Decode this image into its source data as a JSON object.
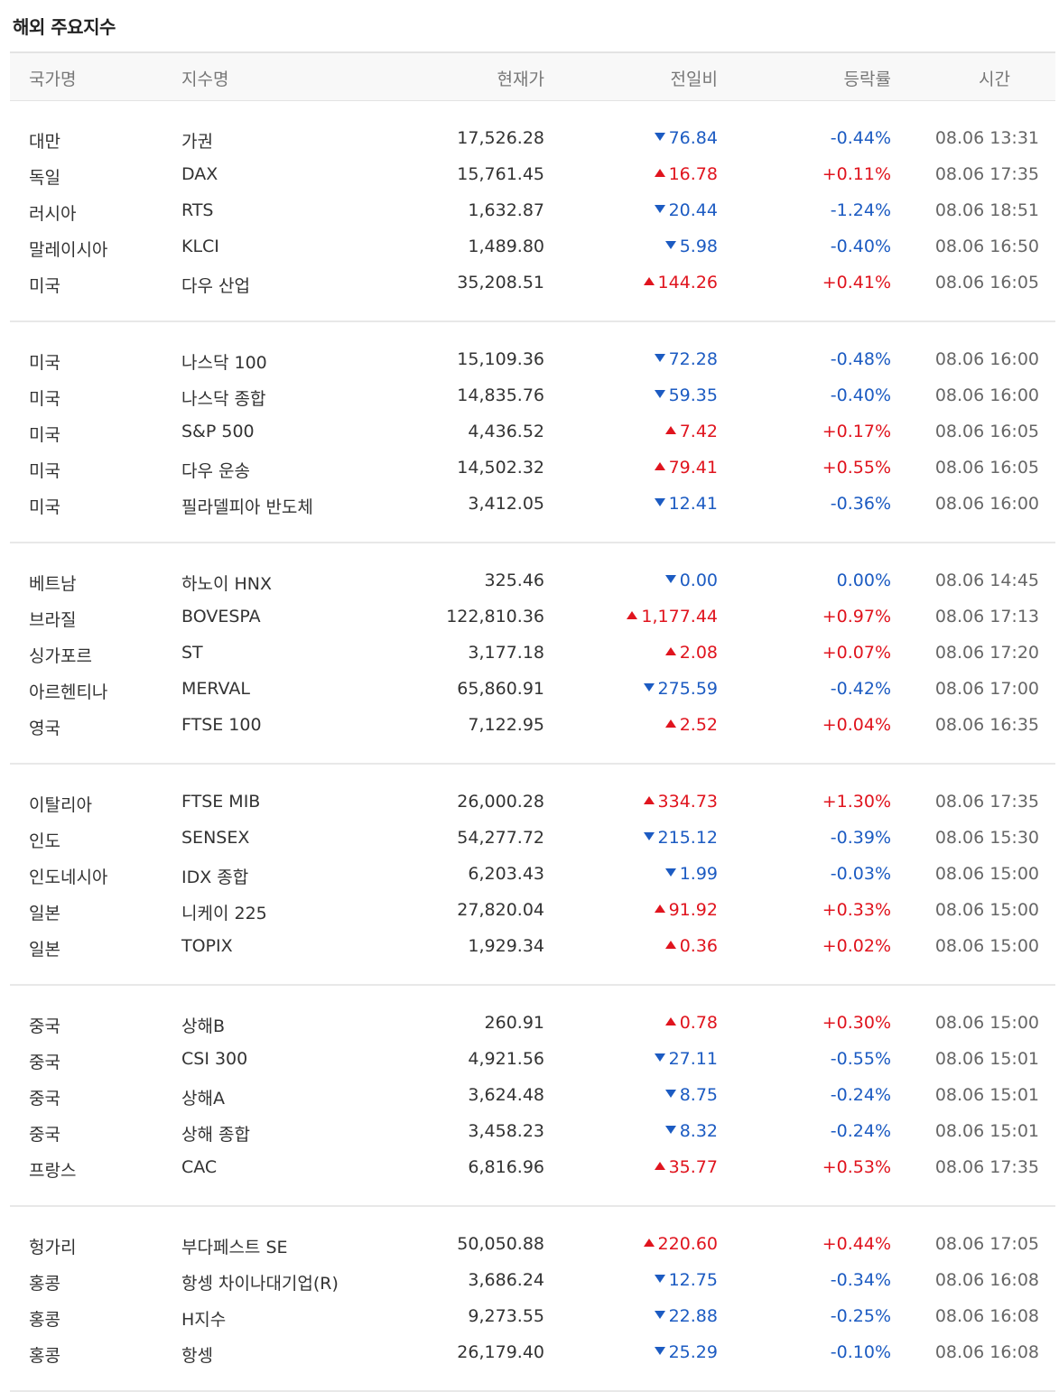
{
  "title": "해외 주요지수",
  "columns": {
    "country": "국가명",
    "name": "지수명",
    "price": "현재가",
    "change": "전일비",
    "rate": "등락률",
    "time": "시간"
  },
  "colors": {
    "up": "#e0141e",
    "down": "#1c5bc2"
  },
  "groups": [
    [
      {
        "country": "대만",
        "name": "가권",
        "price": "17,526.28",
        "direction": "down",
        "change": "76.84",
        "rate": "-0.44%",
        "time": "08.06 13:31"
      },
      {
        "country": "독일",
        "name": "DAX",
        "price": "15,761.45",
        "direction": "up",
        "change": "16.78",
        "rate": "+0.11%",
        "time": "08.06 17:35"
      },
      {
        "country": "러시아",
        "name": "RTS",
        "price": "1,632.87",
        "direction": "down",
        "change": "20.44",
        "rate": "-1.24%",
        "time": "08.06 18:51"
      },
      {
        "country": "말레이시아",
        "name": "KLCI",
        "price": "1,489.80",
        "direction": "down",
        "change": "5.98",
        "rate": "-0.40%",
        "time": "08.06 16:50"
      },
      {
        "country": "미국",
        "name": "다우 산업",
        "price": "35,208.51",
        "direction": "up",
        "change": "144.26",
        "rate": "+0.41%",
        "time": "08.06 16:05"
      }
    ],
    [
      {
        "country": "미국",
        "name": "나스닥 100",
        "price": "15,109.36",
        "direction": "down",
        "change": "72.28",
        "rate": "-0.48%",
        "time": "08.06 16:00"
      },
      {
        "country": "미국",
        "name": "나스닥 종합",
        "price": "14,835.76",
        "direction": "down",
        "change": "59.35",
        "rate": "-0.40%",
        "time": "08.06 16:00"
      },
      {
        "country": "미국",
        "name": "S&P 500",
        "price": "4,436.52",
        "direction": "up",
        "change": "7.42",
        "rate": "+0.17%",
        "time": "08.06 16:05"
      },
      {
        "country": "미국",
        "name": "다우 운송",
        "price": "14,502.32",
        "direction": "up",
        "change": "79.41",
        "rate": "+0.55%",
        "time": "08.06 16:05"
      },
      {
        "country": "미국",
        "name": "필라델피아 반도체",
        "price": "3,412.05",
        "direction": "down",
        "change": "12.41",
        "rate": "-0.36%",
        "time": "08.06 16:00"
      }
    ],
    [
      {
        "country": "베트남",
        "name": "하노이 HNX",
        "price": "325.46",
        "direction": "down",
        "change": "0.00",
        "rate": "0.00%",
        "time": "08.06 14:45"
      },
      {
        "country": "브라질",
        "name": "BOVESPA",
        "price": "122,810.36",
        "direction": "up",
        "change": "1,177.44",
        "rate": "+0.97%",
        "time": "08.06 17:13"
      },
      {
        "country": "싱가포르",
        "name": "ST",
        "price": "3,177.18",
        "direction": "up",
        "change": "2.08",
        "rate": "+0.07%",
        "time": "08.06 17:20"
      },
      {
        "country": "아르헨티나",
        "name": "MERVAL",
        "price": "65,860.91",
        "direction": "down",
        "change": "275.59",
        "rate": "-0.42%",
        "time": "08.06 17:00"
      },
      {
        "country": "영국",
        "name": "FTSE 100",
        "price": "7,122.95",
        "direction": "up",
        "change": "2.52",
        "rate": "+0.04%",
        "time": "08.06 16:35"
      }
    ],
    [
      {
        "country": "이탈리아",
        "name": "FTSE MIB",
        "price": "26,000.28",
        "direction": "up",
        "change": "334.73",
        "rate": "+1.30%",
        "time": "08.06 17:35"
      },
      {
        "country": "인도",
        "name": "SENSEX",
        "price": "54,277.72",
        "direction": "down",
        "change": "215.12",
        "rate": "-0.39%",
        "time": "08.06 15:30"
      },
      {
        "country": "인도네시아",
        "name": "IDX 종합",
        "price": "6,203.43",
        "direction": "down",
        "change": "1.99",
        "rate": "-0.03%",
        "time": "08.06 15:00"
      },
      {
        "country": "일본",
        "name": "니케이 225",
        "price": "27,820.04",
        "direction": "up",
        "change": "91.92",
        "rate": "+0.33%",
        "time": "08.06 15:00"
      },
      {
        "country": "일본",
        "name": "TOPIX",
        "price": "1,929.34",
        "direction": "up",
        "change": "0.36",
        "rate": "+0.02%",
        "time": "08.06 15:00"
      }
    ],
    [
      {
        "country": "중국",
        "name": "상해B",
        "price": "260.91",
        "direction": "up",
        "change": "0.78",
        "rate": "+0.30%",
        "time": "08.06 15:00"
      },
      {
        "country": "중국",
        "name": "CSI 300",
        "price": "4,921.56",
        "direction": "down",
        "change": "27.11",
        "rate": "-0.55%",
        "time": "08.06 15:01"
      },
      {
        "country": "중국",
        "name": "상해A",
        "price": "3,624.48",
        "direction": "down",
        "change": "8.75",
        "rate": "-0.24%",
        "time": "08.06 15:01"
      },
      {
        "country": "중국",
        "name": "상해 종합",
        "price": "3,458.23",
        "direction": "down",
        "change": "8.32",
        "rate": "-0.24%",
        "time": "08.06 15:01"
      },
      {
        "country": "프랑스",
        "name": "CAC",
        "price": "6,816.96",
        "direction": "up",
        "change": "35.77",
        "rate": "+0.53%",
        "time": "08.06 17:35"
      }
    ],
    [
      {
        "country": "헝가리",
        "name": "부다페스트 SE",
        "price": "50,050.88",
        "direction": "up",
        "change": "220.60",
        "rate": "+0.44%",
        "time": "08.06 17:05"
      },
      {
        "country": "홍콩",
        "name": "항셍 차이나대기업(R)",
        "price": "3,686.24",
        "direction": "down",
        "change": "12.75",
        "rate": "-0.34%",
        "time": "08.06 16:08"
      },
      {
        "country": "홍콩",
        "name": "H지수",
        "price": "9,273.55",
        "direction": "down",
        "change": "22.88",
        "rate": "-0.25%",
        "time": "08.06 16:08"
      },
      {
        "country": "홍콩",
        "name": "항셍",
        "price": "26,179.40",
        "direction": "down",
        "change": "25.29",
        "rate": "-0.10%",
        "time": "08.06 16:08"
      }
    ]
  ]
}
